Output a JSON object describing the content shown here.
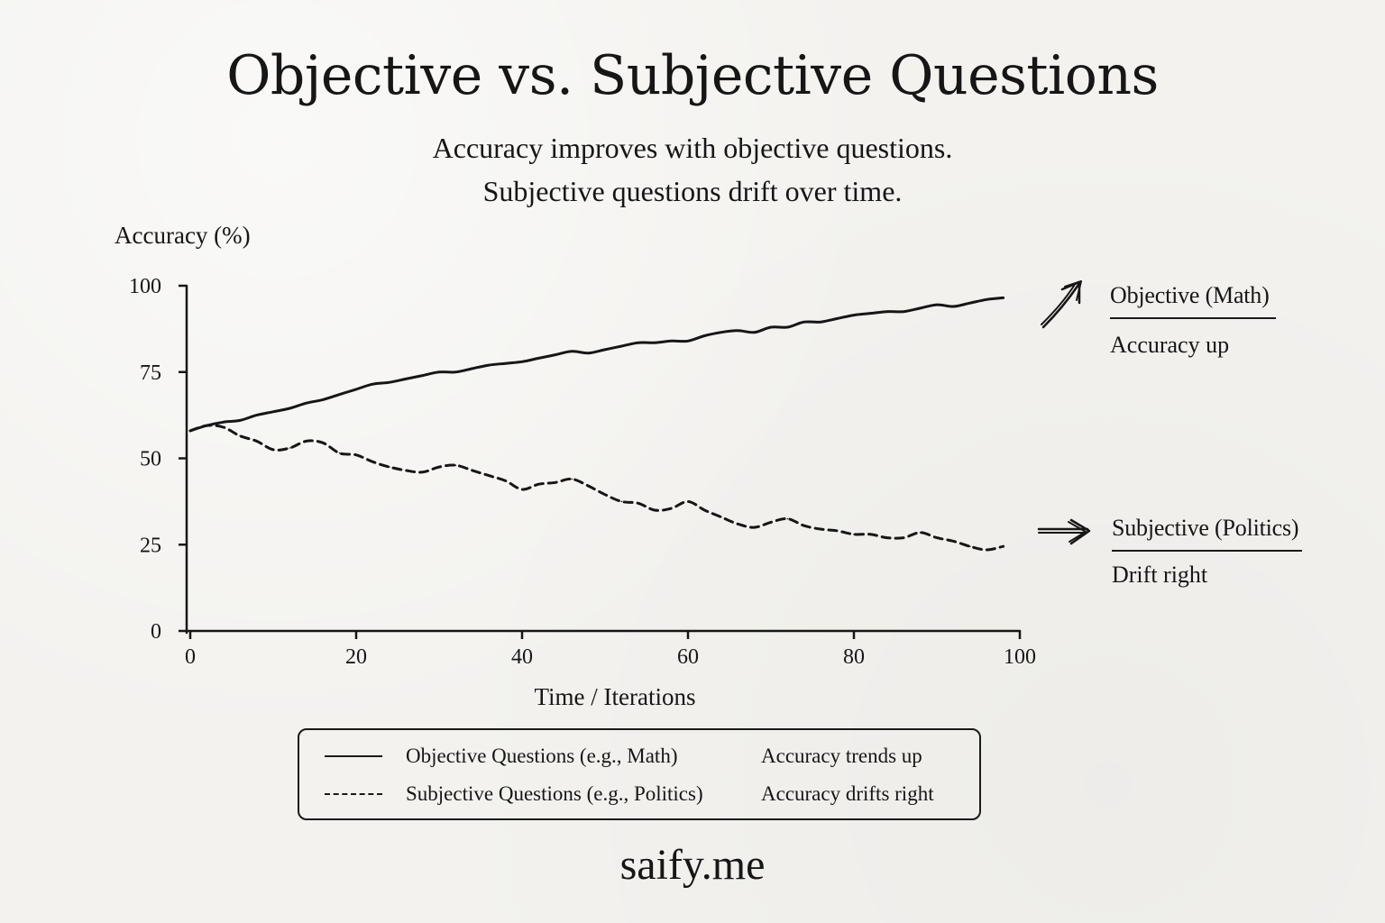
{
  "title": "Objective  vs. Subjective Questions",
  "subtitle_lines": [
    "Accuracy improves with objective questions.",
    "Subjective questions drift over time."
  ],
  "footer": "saify.me",
  "annotations": {
    "objective": {
      "title": "Objective (Math)",
      "text": "Accuracy up",
      "arrow_icon": "arrow-up-right-icon"
    },
    "subjective": {
      "title": "Subjective (Politics)",
      "text": "Drift right",
      "arrow_icon": "arrow-right-icon"
    }
  },
  "legend": {
    "rows": [
      {
        "name": "Objective Questions (e.g., Math)",
        "note": "Accuracy trends up",
        "style": "solid"
      },
      {
        "name": "Subjective Questions (e.g., Politics)",
        "note": "Accuracy drifts right",
        "style": "dashed"
      }
    ]
  },
  "chart_data": {
    "type": "line",
    "title": "Objective  vs. Subjective Questions",
    "xlabel": "Time / Iterations",
    "ylabel": "Accuracy (%)",
    "xlim": [
      0,
      100
    ],
    "ylim": [
      0,
      100
    ],
    "xticks": [
      0,
      20,
      40,
      60,
      80,
      100
    ],
    "yticks": [
      0,
      25,
      50,
      75,
      100
    ],
    "grid": false,
    "legend_position": "bottom",
    "series": [
      {
        "name": "Objective Questions (e.g., Math)",
        "style": "solid",
        "color": "#161616",
        "x": [
          0,
          2,
          4,
          6,
          8,
          10,
          12,
          14,
          16,
          18,
          20,
          22,
          24,
          26,
          28,
          30,
          32,
          34,
          36,
          38,
          40,
          42,
          44,
          46,
          48,
          50,
          52,
          54,
          56,
          58,
          60,
          62,
          64,
          66,
          68,
          70,
          72,
          74,
          76,
          78,
          80,
          82,
          84,
          86,
          88,
          90,
          92,
          94,
          96,
          98
        ],
        "y": [
          58,
          59.5,
          60.5,
          61,
          62.5,
          63.5,
          64.5,
          66,
          67,
          68.5,
          70,
          71.5,
          72,
          73,
          74,
          75,
          75,
          76,
          77,
          77.5,
          78,
          79,
          80,
          81,
          80.5,
          81.5,
          82.5,
          83.5,
          83.5,
          84,
          84,
          85.5,
          86.5,
          87,
          86.5,
          88,
          88,
          89.5,
          89.5,
          90.5,
          91.5,
          92,
          92.5,
          92.5,
          93.5,
          94.5,
          94,
          95,
          96,
          96.5
        ]
      },
      {
        "name": "Subjective Questions (e.g., Politics)",
        "style": "dashed",
        "color": "#161616",
        "x": [
          0,
          2,
          4,
          6,
          8,
          10,
          12,
          14,
          16,
          18,
          20,
          22,
          24,
          26,
          28,
          30,
          32,
          34,
          36,
          38,
          40,
          42,
          44,
          46,
          48,
          50,
          52,
          54,
          56,
          58,
          60,
          62,
          64,
          66,
          68,
          70,
          72,
          74,
          76,
          78,
          80,
          82,
          84,
          86,
          88,
          90,
          92,
          94,
          96,
          98
        ],
        "y": [
          58,
          59.5,
          59,
          56.5,
          55,
          52.5,
          53,
          55,
          54.5,
          51.5,
          51,
          49,
          47.5,
          46.5,
          46,
          47.5,
          48,
          46.5,
          45,
          43.5,
          41,
          42.5,
          43,
          44,
          42,
          39.5,
          37.5,
          37,
          35,
          35.5,
          37.5,
          35,
          33,
          31,
          30,
          31.5,
          32.5,
          30.5,
          29.5,
          29,
          28,
          28,
          27,
          27,
          28.5,
          27,
          26,
          24.5,
          23.5,
          24.5
        ]
      }
    ]
  }
}
